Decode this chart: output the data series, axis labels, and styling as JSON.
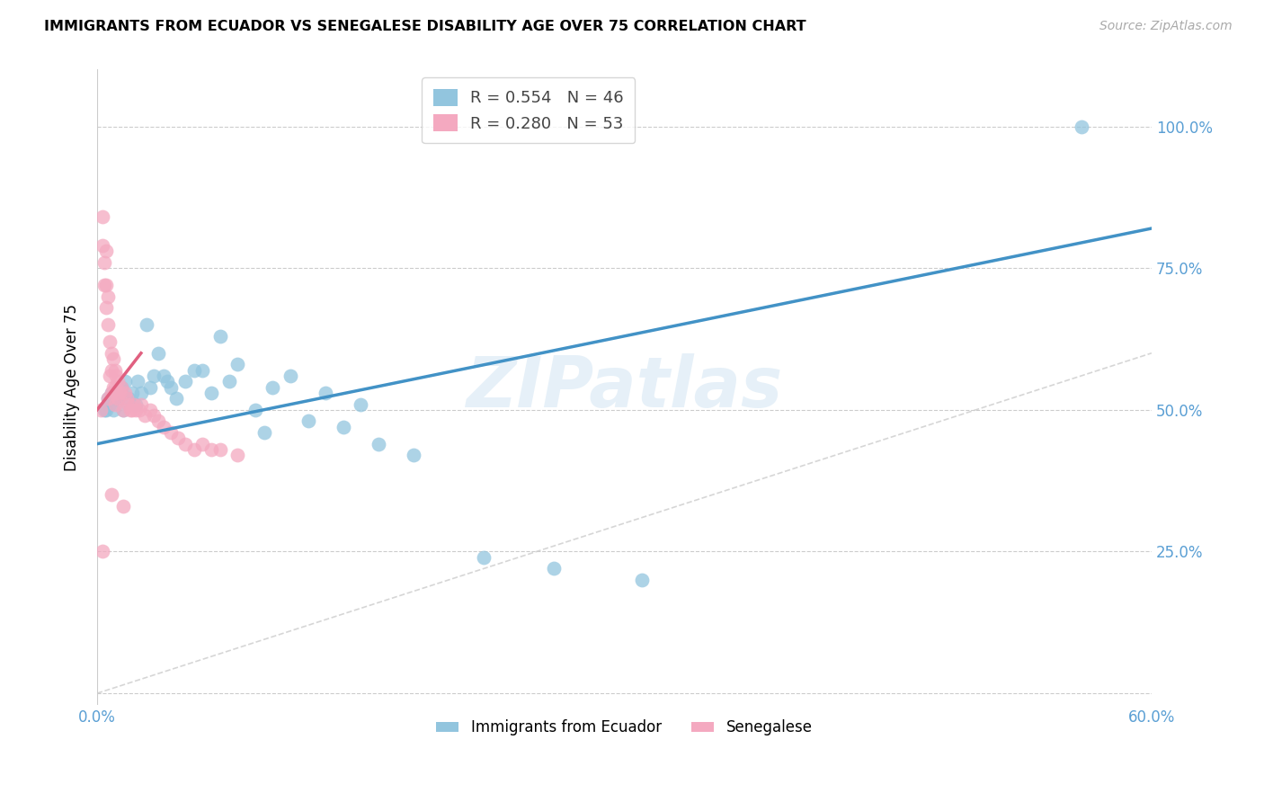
{
  "title": "IMMIGRANTS FROM ECUADOR VS SENEGALESE DISABILITY AGE OVER 75 CORRELATION CHART",
  "source": "Source: ZipAtlas.com",
  "ylabel_label": "Disability Age Over 75",
  "legend_label1": "Immigrants from Ecuador",
  "legend_label2": "Senegalese",
  "r1": 0.554,
  "n1": 46,
  "r2": 0.28,
  "n2": 53,
  "color1": "#92c5de",
  "color2": "#f4a9c0",
  "line1_color": "#4292c6",
  "line2_color": "#e06080",
  "diag_color": "#cccccc",
  "xlim": [
    0.0,
    0.6
  ],
  "ylim": [
    -0.02,
    1.1
  ],
  "ytick_vals": [
    0.0,
    0.25,
    0.5,
    0.75,
    1.0
  ],
  "ytick_labels_right": [
    "",
    "25.0%",
    "50.0%",
    "75.0%",
    "100.0%"
  ],
  "watermark_text": "ZIPatlas",
  "ecuador_x": [
    0.004,
    0.005,
    0.006,
    0.007,
    0.008,
    0.009,
    0.01,
    0.011,
    0.012,
    0.014,
    0.015,
    0.016,
    0.018,
    0.02,
    0.022,
    0.023,
    0.025,
    0.028,
    0.03,
    0.032,
    0.035,
    0.038,
    0.04,
    0.042,
    0.045,
    0.05,
    0.055,
    0.06,
    0.065,
    0.07,
    0.075,
    0.08,
    0.09,
    0.095,
    0.1,
    0.11,
    0.12,
    0.13,
    0.14,
    0.15,
    0.16,
    0.18,
    0.22,
    0.26,
    0.31,
    0.56
  ],
  "ecuador_y": [
    0.5,
    0.5,
    0.52,
    0.51,
    0.53,
    0.5,
    0.52,
    0.53,
    0.52,
    0.54,
    0.5,
    0.55,
    0.52,
    0.53,
    0.51,
    0.55,
    0.53,
    0.65,
    0.54,
    0.56,
    0.6,
    0.56,
    0.55,
    0.54,
    0.52,
    0.55,
    0.57,
    0.57,
    0.53,
    0.63,
    0.55,
    0.58,
    0.5,
    0.46,
    0.54,
    0.56,
    0.48,
    0.53,
    0.47,
    0.51,
    0.44,
    0.42,
    0.24,
    0.22,
    0.2,
    1.0
  ],
  "senegal_x": [
    0.002,
    0.003,
    0.003,
    0.004,
    0.004,
    0.005,
    0.005,
    0.005,
    0.006,
    0.006,
    0.006,
    0.007,
    0.007,
    0.008,
    0.008,
    0.008,
    0.009,
    0.009,
    0.01,
    0.01,
    0.01,
    0.011,
    0.011,
    0.012,
    0.012,
    0.013,
    0.014,
    0.015,
    0.016,
    0.017,
    0.018,
    0.019,
    0.02,
    0.021,
    0.022,
    0.024,
    0.025,
    0.027,
    0.03,
    0.032,
    0.035,
    0.038,
    0.042,
    0.046,
    0.05,
    0.055,
    0.06,
    0.065,
    0.07,
    0.08,
    0.003,
    0.008,
    0.015
  ],
  "senegal_y": [
    0.5,
    0.79,
    0.84,
    0.72,
    0.76,
    0.68,
    0.72,
    0.78,
    0.52,
    0.65,
    0.7,
    0.56,
    0.62,
    0.53,
    0.57,
    0.6,
    0.54,
    0.59,
    0.51,
    0.54,
    0.57,
    0.53,
    0.56,
    0.52,
    0.55,
    0.53,
    0.54,
    0.5,
    0.53,
    0.52,
    0.51,
    0.5,
    0.5,
    0.51,
    0.5,
    0.5,
    0.51,
    0.49,
    0.5,
    0.49,
    0.48,
    0.47,
    0.46,
    0.45,
    0.44,
    0.43,
    0.44,
    0.43,
    0.43,
    0.42,
    0.25,
    0.35,
    0.33
  ]
}
